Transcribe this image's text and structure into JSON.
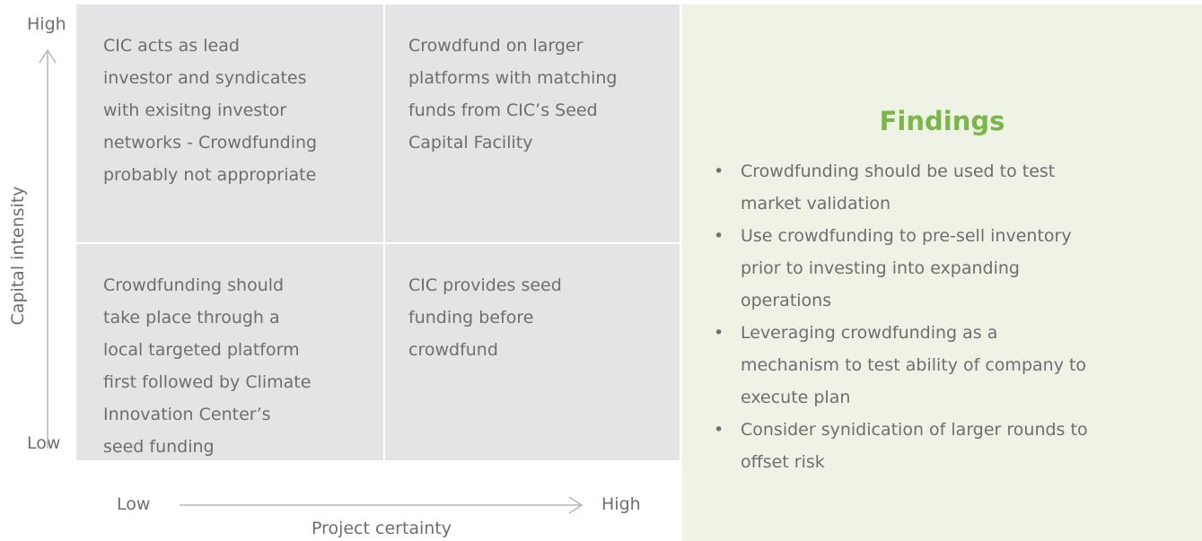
{
  "axes": {
    "y_label": "Capital intensity",
    "y_high": "High",
    "y_low": "Low",
    "x_label": "Project certainty",
    "x_low": "Low",
    "x_high": "High"
  },
  "quadrants": [
    {
      "lines": [
        "CIC acts as lead",
        "investor and syndicates",
        "with exisitng investor",
        "networks - Crowdfunding",
        "probably not appropriate"
      ]
    },
    {
      "lines": [
        "Crowdfund on larger",
        "platforms with matching",
        "funds from CIC’s Seed",
        "Capital Facility"
      ]
    },
    {
      "lines": [
        "Crowdfunding should",
        "take place through a",
        "local targeted platform",
        "first followed by Climate",
        "Innovation Center’s",
        "seed funding"
      ]
    },
    {
      "lines": [
        "CIC provides seed",
        "funding before",
        "crowdfund"
      ]
    }
  ],
  "findings": {
    "title": "Findings",
    "bullets": [
      {
        "lines": [
          "Crowdfunding should be used to test",
          "market validation"
        ]
      },
      {
        "lines": [
          "Use crowdfunding to pre-sell inventory",
          "prior to investing into expanding",
          "operations"
        ]
      },
      {
        "lines": [
          "Leveraging crowdfunding as a",
          "mechanism to test ability of company to",
          "execute plan"
        ]
      },
      {
        "lines": [
          "Consider synidication of larger rounds to",
          "offset risk"
        ]
      }
    ]
  }
}
